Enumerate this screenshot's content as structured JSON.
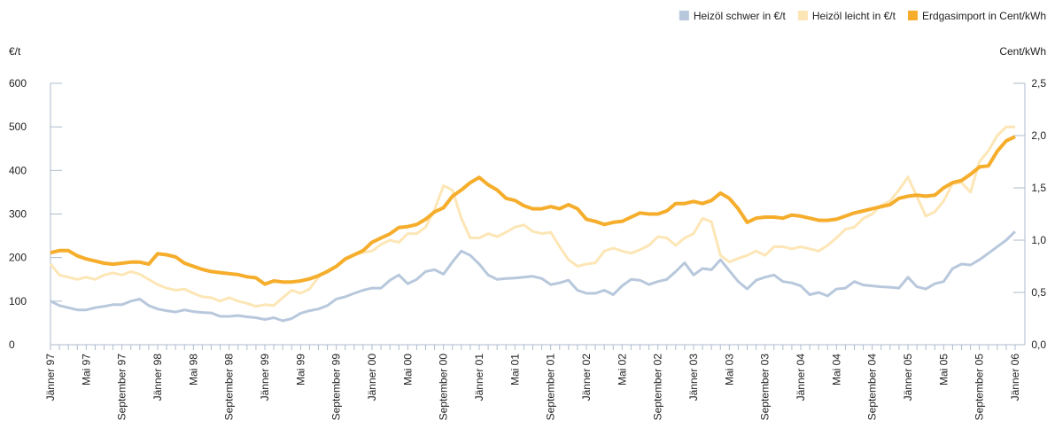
{
  "chart_data": {
    "type": "line",
    "y_label": "€/t",
    "y2_label": "Cent/kWh",
    "categories": [
      "Jänner 97",
      null,
      null,
      null,
      "Mai 97",
      null,
      null,
      null,
      "September 97",
      null,
      null,
      null,
      "Jänner 98",
      null,
      null,
      null,
      "Mai 98",
      null,
      null,
      null,
      "September 98",
      null,
      null,
      null,
      "Jänner 99",
      null,
      null,
      null,
      "Mai 99",
      null,
      null,
      null,
      "September 99",
      null,
      null,
      null,
      "Jänner 00",
      null,
      null,
      null,
      "Mai 00",
      null,
      null,
      null,
      "September 00",
      null,
      null,
      null,
      "Jänner 01",
      null,
      null,
      null,
      "Mai 01",
      null,
      null,
      null,
      "September 01",
      null,
      null,
      null,
      "Jänner 02",
      null,
      null,
      null,
      "Mai 02",
      null,
      null,
      null,
      "September 02",
      null,
      null,
      null,
      "Jänner 03",
      null,
      null,
      null,
      "Mai 03",
      null,
      null,
      null,
      "September 03",
      null,
      null,
      null,
      "Jänner 04",
      null,
      null,
      null,
      "Mai 04",
      null,
      null,
      null,
      "September 04",
      null,
      null,
      null,
      "Jänner 05",
      null,
      null,
      null,
      "Mai 05",
      null,
      null,
      null,
      "September 05",
      null,
      null,
      null,
      "Jänner 06"
    ],
    "series": [
      {
        "name": "Heizöl schwer in €/t",
        "color": "#b8c8dc",
        "values": [
          100,
          90,
          85,
          80,
          80,
          85,
          88,
          92,
          92,
          100,
          105,
          90,
          82,
          78,
          75,
          80,
          76,
          74,
          73,
          65,
          65,
          67,
          64,
          62,
          58,
          62,
          55,
          60,
          72,
          78,
          82,
          90,
          105,
          110,
          118,
          125,
          130,
          130,
          148,
          160,
          140,
          150,
          168,
          172,
          162,
          190,
          215,
          205,
          185,
          160,
          150,
          152,
          153,
          155,
          157,
          152,
          138,
          142,
          148,
          125,
          118,
          118,
          125,
          115,
          135,
          150,
          148,
          138,
          145,
          150,
          168,
          188,
          160,
          175,
          172,
          195,
          170,
          145,
          128,
          148,
          155,
          160,
          145,
          142,
          135,
          115,
          120,
          112,
          128,
          130,
          145,
          137,
          135,
          133,
          132,
          130,
          155,
          133,
          128,
          140,
          145,
          175,
          185,
          183,
          195,
          210,
          225,
          240,
          260
        ]
      },
      {
        "name": "Heizöl leicht in €/t",
        "color": "#fde6b6",
        "values": [
          185,
          160,
          155,
          150,
          155,
          150,
          160,
          165,
          160,
          168,
          162,
          150,
          138,
          130,
          125,
          128,
          118,
          110,
          108,
          100,
          108,
          100,
          95,
          88,
          92,
          90,
          108,
          125,
          118,
          128,
          155,
          170,
          180,
          195,
          205,
          212,
          215,
          230,
          240,
          235,
          255,
          255,
          270,
          310,
          365,
          355,
          290,
          245,
          245,
          255,
          248,
          258,
          270,
          275,
          260,
          255,
          258,
          225,
          195,
          180,
          185,
          188,
          215,
          222,
          215,
          210,
          218,
          228,
          248,
          245,
          228,
          245,
          255,
          290,
          282,
          205,
          190,
          198,
          205,
          215,
          205,
          225,
          225,
          220,
          225,
          220,
          215,
          228,
          245,
          265,
          270,
          290,
          300,
          320,
          330,
          355,
          385,
          340,
          295,
          305,
          330,
          370,
          372,
          350,
          420,
          445,
          480,
          500,
          500
        ]
      },
      {
        "name": "Erdgasimport in Cent/kWh",
        "color": "#f5ad2b",
        "axis": "y2",
        "values": [
          0.88,
          0.9,
          0.9,
          0.85,
          0.82,
          0.8,
          0.78,
          0.77,
          0.78,
          0.79,
          0.79,
          0.77,
          0.87,
          0.86,
          0.84,
          0.78,
          0.75,
          0.72,
          0.7,
          0.69,
          0.68,
          0.67,
          0.65,
          0.64,
          0.58,
          0.61,
          0.6,
          0.6,
          0.61,
          0.63,
          0.66,
          0.7,
          0.75,
          0.82,
          0.86,
          0.9,
          0.98,
          1.02,
          1.06,
          1.12,
          1.13,
          1.15,
          1.2,
          1.27,
          1.31,
          1.42,
          1.48,
          1.55,
          1.6,
          1.53,
          1.48,
          1.4,
          1.38,
          1.33,
          1.3,
          1.3,
          1.32,
          1.3,
          1.34,
          1.3,
          1.2,
          1.18,
          1.15,
          1.17,
          1.18,
          1.22,
          1.26,
          1.25,
          1.25,
          1.28,
          1.35,
          1.35,
          1.37,
          1.35,
          1.38,
          1.45,
          1.4,
          1.3,
          1.17,
          1.21,
          1.22,
          1.22,
          1.21,
          1.24,
          1.23,
          1.21,
          1.19,
          1.19,
          1.2,
          1.23,
          1.26,
          1.28,
          1.3,
          1.32,
          1.34,
          1.4,
          1.42,
          1.43,
          1.42,
          1.43,
          1.5,
          1.55,
          1.57,
          1.63,
          1.7,
          1.71,
          1.85,
          1.95,
          1.99
        ]
      }
    ],
    "ylim": [
      0,
      600
    ],
    "yticks": [
      0,
      100,
      200,
      300,
      400,
      500,
      600
    ],
    "y2lim": [
      0,
      2.5
    ],
    "y2ticks": [
      {
        "value": 0,
        "label": "0,0"
      },
      {
        "value": 0.5,
        "label": "0,5"
      },
      {
        "value": 1,
        "label": "1,0"
      },
      {
        "value": 1.5,
        "label": "1,5"
      },
      {
        "value": 2,
        "label": "2,0"
      },
      {
        "value": 2.5,
        "label": "2,5"
      }
    ],
    "legend": "top-right",
    "grid": false
  }
}
